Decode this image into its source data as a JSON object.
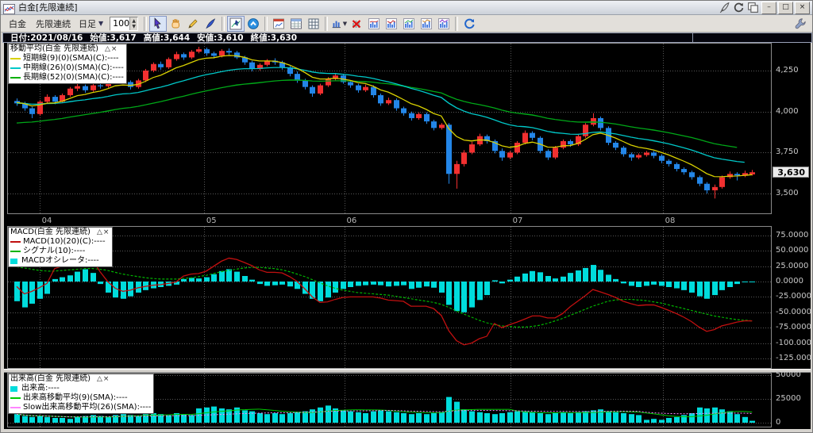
{
  "window": {
    "title": "白金[先限連続]",
    "titlebar_icons": [
      "feather-pin",
      "rotate-g",
      "copy-window"
    ],
    "minimize": "–",
    "maximize": "□",
    "close": "×"
  },
  "toolbar": {
    "symbol": "白金",
    "contract": "先限連続",
    "period": "日足",
    "period_arrow": "▼",
    "bars_count": "100",
    "groups": [
      [
        {
          "name": "select-cursor",
          "pressed": true
        },
        {
          "name": "hand-pan",
          "pressed": false
        },
        {
          "name": "pencil-draw",
          "pressed": false
        },
        {
          "name": "quill-draw",
          "pressed": false
        }
      ],
      [
        {
          "name": "crosshair-chart",
          "pressed": true
        },
        {
          "name": "scroll-to-latest",
          "pressed": false
        }
      ],
      [
        {
          "name": "chart-window",
          "pressed": false
        },
        {
          "name": "data-table",
          "pressed": false
        },
        {
          "name": "grid-table",
          "pressed": false
        }
      ],
      [
        {
          "name": "bar-chart-dropdown",
          "pressed": false
        },
        {
          "name": "delete-chart",
          "pressed": false
        },
        {
          "name": "chart-layout-1",
          "pressed": false
        },
        {
          "name": "chart-layout-2",
          "pressed": false
        },
        {
          "name": "chart-layout-3",
          "pressed": false
        },
        {
          "name": "chart-layout-4",
          "pressed": false
        },
        {
          "name": "chart-layout-5",
          "pressed": false
        }
      ],
      [
        {
          "name": "refresh",
          "pressed": false
        }
      ]
    ],
    "right_icon": "wrench-settings"
  },
  "info_bar": {
    "date": "日付:2021/08/16",
    "open": "始値:3,617",
    "high": "高値:3,644",
    "low": "安値:3,610",
    "close": "終値:3,630"
  },
  "chart_data": [
    {
      "type": "candlestick",
      "title": "移動平均(白金  先限連続)",
      "legend_controls": {
        "collapse": "△",
        "close": "×"
      },
      "legend": [
        {
          "label": "短期線(9)(0)(SMA)(C):----",
          "color": "#d8d000",
          "swatch": "line"
        },
        {
          "label": "中期線(26)(0)(SMA)(C):----",
          "color": "#00c8c8",
          "swatch": "line"
        },
        {
          "label": "長期線(52)(0)(SMA)(C):----",
          "color": "#00b000",
          "swatch": "line"
        }
      ],
      "x_ticks": [
        {
          "label": "04",
          "i": 3.5
        },
        {
          "label": "05",
          "i": 25.2
        },
        {
          "label": "06",
          "i": 43.7
        },
        {
          "label": "07",
          "i": 65.6
        },
        {
          "label": "08",
          "i": 85.7
        }
      ],
      "y_ticks": [
        4250,
        4000,
        3750,
        3500
      ],
      "y_tick_labels": [
        "4,250",
        "4,000",
        "3,750",
        "3,500"
      ],
      "current_price": 3630,
      "current_price_label": "3,630",
      "ylim": [
        3380,
        4420
      ],
      "colors": {
        "up": "#f23030",
        "down": "#2386e8",
        "ma_short": "#d8d000",
        "ma_mid": "#00c8c8",
        "ma_long": "#00a818"
      },
      "ohlc_format": [
        "open",
        "high",
        "low",
        "close"
      ],
      "candles": [
        [
          4065,
          4080,
          4035,
          4050
        ],
        [
          4050,
          4060,
          4005,
          4020
        ],
        [
          4020,
          4030,
          3960,
          3985
        ],
        [
          3985,
          4070,
          3975,
          4060
        ],
        [
          4060,
          4105,
          4050,
          4090
        ],
        [
          4090,
          4100,
          4045,
          4060
        ],
        [
          4060,
          4110,
          4055,
          4100
        ],
        [
          4100,
          4150,
          4090,
          4140
        ],
        [
          4140,
          4170,
          4125,
          4155
        ],
        [
          4155,
          4165,
          4115,
          4130
        ],
        [
          4130,
          4170,
          4120,
          4160
        ],
        [
          4160,
          4175,
          4140,
          4155
        ],
        [
          4155,
          4200,
          4145,
          4190
        ],
        [
          4190,
          4235,
          4180,
          4220
        ],
        [
          4220,
          4230,
          4170,
          4180
        ],
        [
          4180,
          4190,
          4135,
          4150
        ],
        [
          4150,
          4200,
          4140,
          4190
        ],
        [
          4190,
          4260,
          4180,
          4250
        ],
        [
          4250,
          4300,
          4240,
          4290
        ],
        [
          4290,
          4305,
          4255,
          4270
        ],
        [
          4270,
          4330,
          4260,
          4320
        ],
        [
          4320,
          4365,
          4310,
          4350
        ],
        [
          4350,
          4360,
          4315,
          4330
        ],
        [
          4330,
          4375,
          4320,
          4365
        ],
        [
          4365,
          4395,
          4355,
          4380
        ],
        [
          4380,
          4390,
          4340,
          4355
        ],
        [
          4355,
          4365,
          4325,
          4340
        ],
        [
          4340,
          4380,
          4330,
          4370
        ],
        [
          4370,
          4385,
          4345,
          4360
        ],
        [
          4360,
          4370,
          4320,
          4330
        ],
        [
          4330,
          4340,
          4285,
          4300
        ],
        [
          4300,
          4310,
          4245,
          4260
        ],
        [
          4260,
          4295,
          4250,
          4285
        ],
        [
          4285,
          4320,
          4275,
          4310
        ],
        [
          4310,
          4325,
          4285,
          4300
        ],
        [
          4300,
          4310,
          4255,
          4270
        ],
        [
          4270,
          4280,
          4215,
          4230
        ],
        [
          4230,
          4245,
          4175,
          4190
        ],
        [
          4190,
          4200,
          4135,
          4150
        ],
        [
          4150,
          4160,
          4090,
          4110
        ],
        [
          4110,
          4170,
          4100,
          4160
        ],
        [
          4160,
          4210,
          4150,
          4200
        ],
        [
          4200,
          4235,
          4190,
          4220
        ],
        [
          4220,
          4230,
          4170,
          4180
        ],
        [
          4180,
          4190,
          4145,
          4160
        ],
        [
          4160,
          4170,
          4115,
          4130
        ],
        [
          4130,
          4165,
          4120,
          4150
        ],
        [
          4150,
          4160,
          4085,
          4100
        ],
        [
          4100,
          4110,
          4035,
          4050
        ],
        [
          4050,
          4085,
          4040,
          4070
        ],
        [
          4070,
          4080,
          4005,
          4020
        ],
        [
          4020,
          4030,
          3975,
          3990
        ],
        [
          3990,
          4000,
          3945,
          3960
        ],
        [
          3960,
          3995,
          3950,
          3985
        ],
        [
          3985,
          3995,
          3925,
          3940
        ],
        [
          3940,
          3950,
          3885,
          3900
        ],
        [
          3900,
          3930,
          3890,
          3920
        ],
        [
          3920,
          3930,
          3560,
          3620
        ],
        [
          3620,
          3700,
          3530,
          3680
        ],
        [
          3680,
          3765,
          3665,
          3750
        ],
        [
          3750,
          3815,
          3740,
          3800
        ],
        [
          3800,
          3865,
          3790,
          3850
        ],
        [
          3850,
          3860,
          3805,
          3820
        ],
        [
          3820,
          3830,
          3745,
          3760
        ],
        [
          3760,
          3775,
          3700,
          3720
        ],
        [
          3720,
          3760,
          3710,
          3750
        ],
        [
          3750,
          3820,
          3740,
          3810
        ],
        [
          3810,
          3885,
          3800,
          3870
        ],
        [
          3870,
          3880,
          3825,
          3840
        ],
        [
          3840,
          3850,
          3745,
          3760
        ],
        [
          3760,
          3770,
          3705,
          3720
        ],
        [
          3720,
          3790,
          3710,
          3780
        ],
        [
          3780,
          3830,
          3770,
          3820
        ],
        [
          3820,
          3830,
          3785,
          3800
        ],
        [
          3800,
          3860,
          3790,
          3850
        ],
        [
          3850,
          3930,
          3840,
          3920
        ],
        [
          3920,
          3990,
          3910,
          3960
        ],
        [
          3960,
          3970,
          3885,
          3900
        ],
        [
          3900,
          3910,
          3795,
          3810
        ],
        [
          3810,
          3820,
          3765,
          3780
        ],
        [
          3780,
          3790,
          3725,
          3740
        ],
        [
          3740,
          3750,
          3700,
          3720
        ],
        [
          3720,
          3745,
          3710,
          3735
        ],
        [
          3735,
          3760,
          3725,
          3750
        ],
        [
          3750,
          3760,
          3715,
          3730
        ],
        [
          3730,
          3740,
          3685,
          3700
        ],
        [
          3700,
          3710,
          3665,
          3680
        ],
        [
          3680,
          3690,
          3635,
          3650
        ],
        [
          3650,
          3660,
          3615,
          3630
        ],
        [
          3630,
          3640,
          3585,
          3600
        ],
        [
          3600,
          3610,
          3545,
          3560
        ],
        [
          3560,
          3570,
          3500,
          3520
        ],
        [
          3520,
          3555,
          3470,
          3540
        ],
        [
          3540,
          3610,
          3530,
          3600
        ],
        [
          3600,
          3635,
          3590,
          3620
        ],
        [
          3620,
          3630,
          3580,
          3610
        ],
        [
          3610,
          3640,
          3600,
          3625
        ],
        [
          3617,
          3644,
          3610,
          3630
        ]
      ]
    },
    {
      "type": "bar",
      "title": "MACD(白金  先限連続)",
      "legend_controls": {
        "collapse": "△",
        "close": "×"
      },
      "legend": [
        {
          "label": "MACD(10)(20)(C):----",
          "color": "#c01010",
          "swatch": "line"
        },
        {
          "label": "シグナル(10):----",
          "color": "#00b400",
          "swatch": "line"
        },
        {
          "label": "MACDオシレータ:----",
          "color": "#00dcdc",
          "swatch": "block"
        }
      ],
      "y_ticks": [
        75,
        50,
        25,
        0,
        -25,
        -50,
        -75,
        -100,
        -125
      ],
      "y_tick_labels": [
        "75.0000",
        "50.0000",
        "25.0000",
        "0.0000",
        "-25.0000",
        "-50.0000",
        "-75.0000",
        "-100.0000",
        "-125.0000"
      ],
      "colors": {
        "macd": "#c01010",
        "signal": "#00b400",
        "osc": "#00dcdc"
      },
      "osc": [
        -32,
        -42,
        -36,
        -28,
        -20,
        4,
        7,
        10,
        16,
        20,
        14,
        -4,
        -18,
        -26,
        -28,
        -24,
        -18,
        -14,
        -11,
        -9,
        -7,
        -5,
        4,
        6,
        5,
        7,
        12,
        17,
        20,
        16,
        9,
        3,
        -4,
        -7,
        -6,
        -5,
        -8,
        -12,
        -20,
        -28,
        -32,
        -26,
        -18,
        -12,
        -9,
        -7,
        -6,
        -5,
        -6,
        -8,
        -7,
        -6,
        -12,
        -10,
        -8,
        -10,
        -18,
        -38,
        -48,
        -50,
        -42,
        -30,
        -22,
        2,
        -3,
        3,
        8,
        13,
        17,
        15,
        9,
        5,
        8,
        14,
        18,
        22,
        27,
        19,
        11,
        4,
        -3,
        -7,
        -9,
        -7,
        -5,
        -7,
        -9,
        -11,
        -14,
        -18,
        -24,
        -28,
        -22,
        -14,
        -9,
        -4,
        -1,
        0
      ],
      "signal": [
        24,
        22,
        20,
        18,
        17,
        17,
        18,
        19,
        20,
        21,
        21,
        20,
        18,
        15,
        12,
        10,
        8,
        6,
        5,
        4,
        4,
        4,
        5,
        6,
        8,
        10,
        13,
        16,
        18,
        20,
        22,
        23,
        23,
        22,
        21,
        19,
        16,
        12,
        8,
        3,
        -2,
        -7,
        -11,
        -14,
        -16,
        -18,
        -19,
        -20,
        -21,
        -22,
        -24,
        -26,
        -28,
        -30,
        -32,
        -34,
        -37,
        -42,
        -48,
        -53,
        -58,
        -63,
        -67,
        -70,
        -72,
        -73,
        -74,
        -74,
        -73,
        -71,
        -68,
        -64,
        -60,
        -55,
        -50,
        -45,
        -40,
        -36,
        -32,
        -30,
        -29,
        -29,
        -30,
        -31,
        -33,
        -35,
        -38,
        -41,
        -44,
        -47,
        -50,
        -53,
        -56,
        -58,
        -60,
        -62,
        -63,
        -64
      ]
    },
    {
      "type": "bar",
      "title": "出来高(白金  先限連続)",
      "legend_controls": {
        "collapse": "△",
        "close": "×"
      },
      "legend": [
        {
          "label": "出来高:----",
          "color": "#00dcdc",
          "swatch": "block"
        },
        {
          "label": "出来高移動平均(9)(SMA):----",
          "color": "#00c800",
          "swatch": "line"
        },
        {
          "label": "Slow出来高移動平均(26)(SMA):----",
          "color": "#ff86ff",
          "swatch": "line"
        }
      ],
      "y_ticks": [
        50000,
        25000,
        0
      ],
      "y_tick_labels": [
        "50000",
        "25000",
        "0"
      ],
      "colors": {
        "bar": "#00dcdc",
        "ma9": "#00c800",
        "ma26": "#ff86ff"
      },
      "values": [
        9000,
        7000,
        6000,
        7000,
        6000,
        5000,
        5000,
        4000,
        6000,
        7000,
        8000,
        7000,
        6000,
        8000,
        9000,
        8000,
        7000,
        9000,
        10000,
        9000,
        8000,
        10000,
        9000,
        8000,
        15000,
        16000,
        17000,
        15000,
        14000,
        16000,
        13000,
        12000,
        10000,
        9000,
        10000,
        9000,
        10000,
        11000,
        12000,
        14000,
        16000,
        18000,
        15000,
        13000,
        12000,
        11000,
        10000,
        12000,
        13000,
        12000,
        11000,
        10000,
        9000,
        10000,
        9000,
        10000,
        11000,
        27000,
        22000,
        14000,
        12000,
        11000,
        10000,
        9000,
        10000,
        11000,
        12000,
        12000,
        11000,
        10000,
        9000,
        10000,
        11000,
        10000,
        11000,
        12000,
        13000,
        14000,
        12000,
        11000,
        10000,
        9000,
        8000,
        3000,
        4000,
        3000,
        5000,
        6000,
        8000,
        10000,
        16000,
        15000,
        16000,
        14000,
        12000,
        9000,
        6000,
        2000
      ]
    }
  ]
}
